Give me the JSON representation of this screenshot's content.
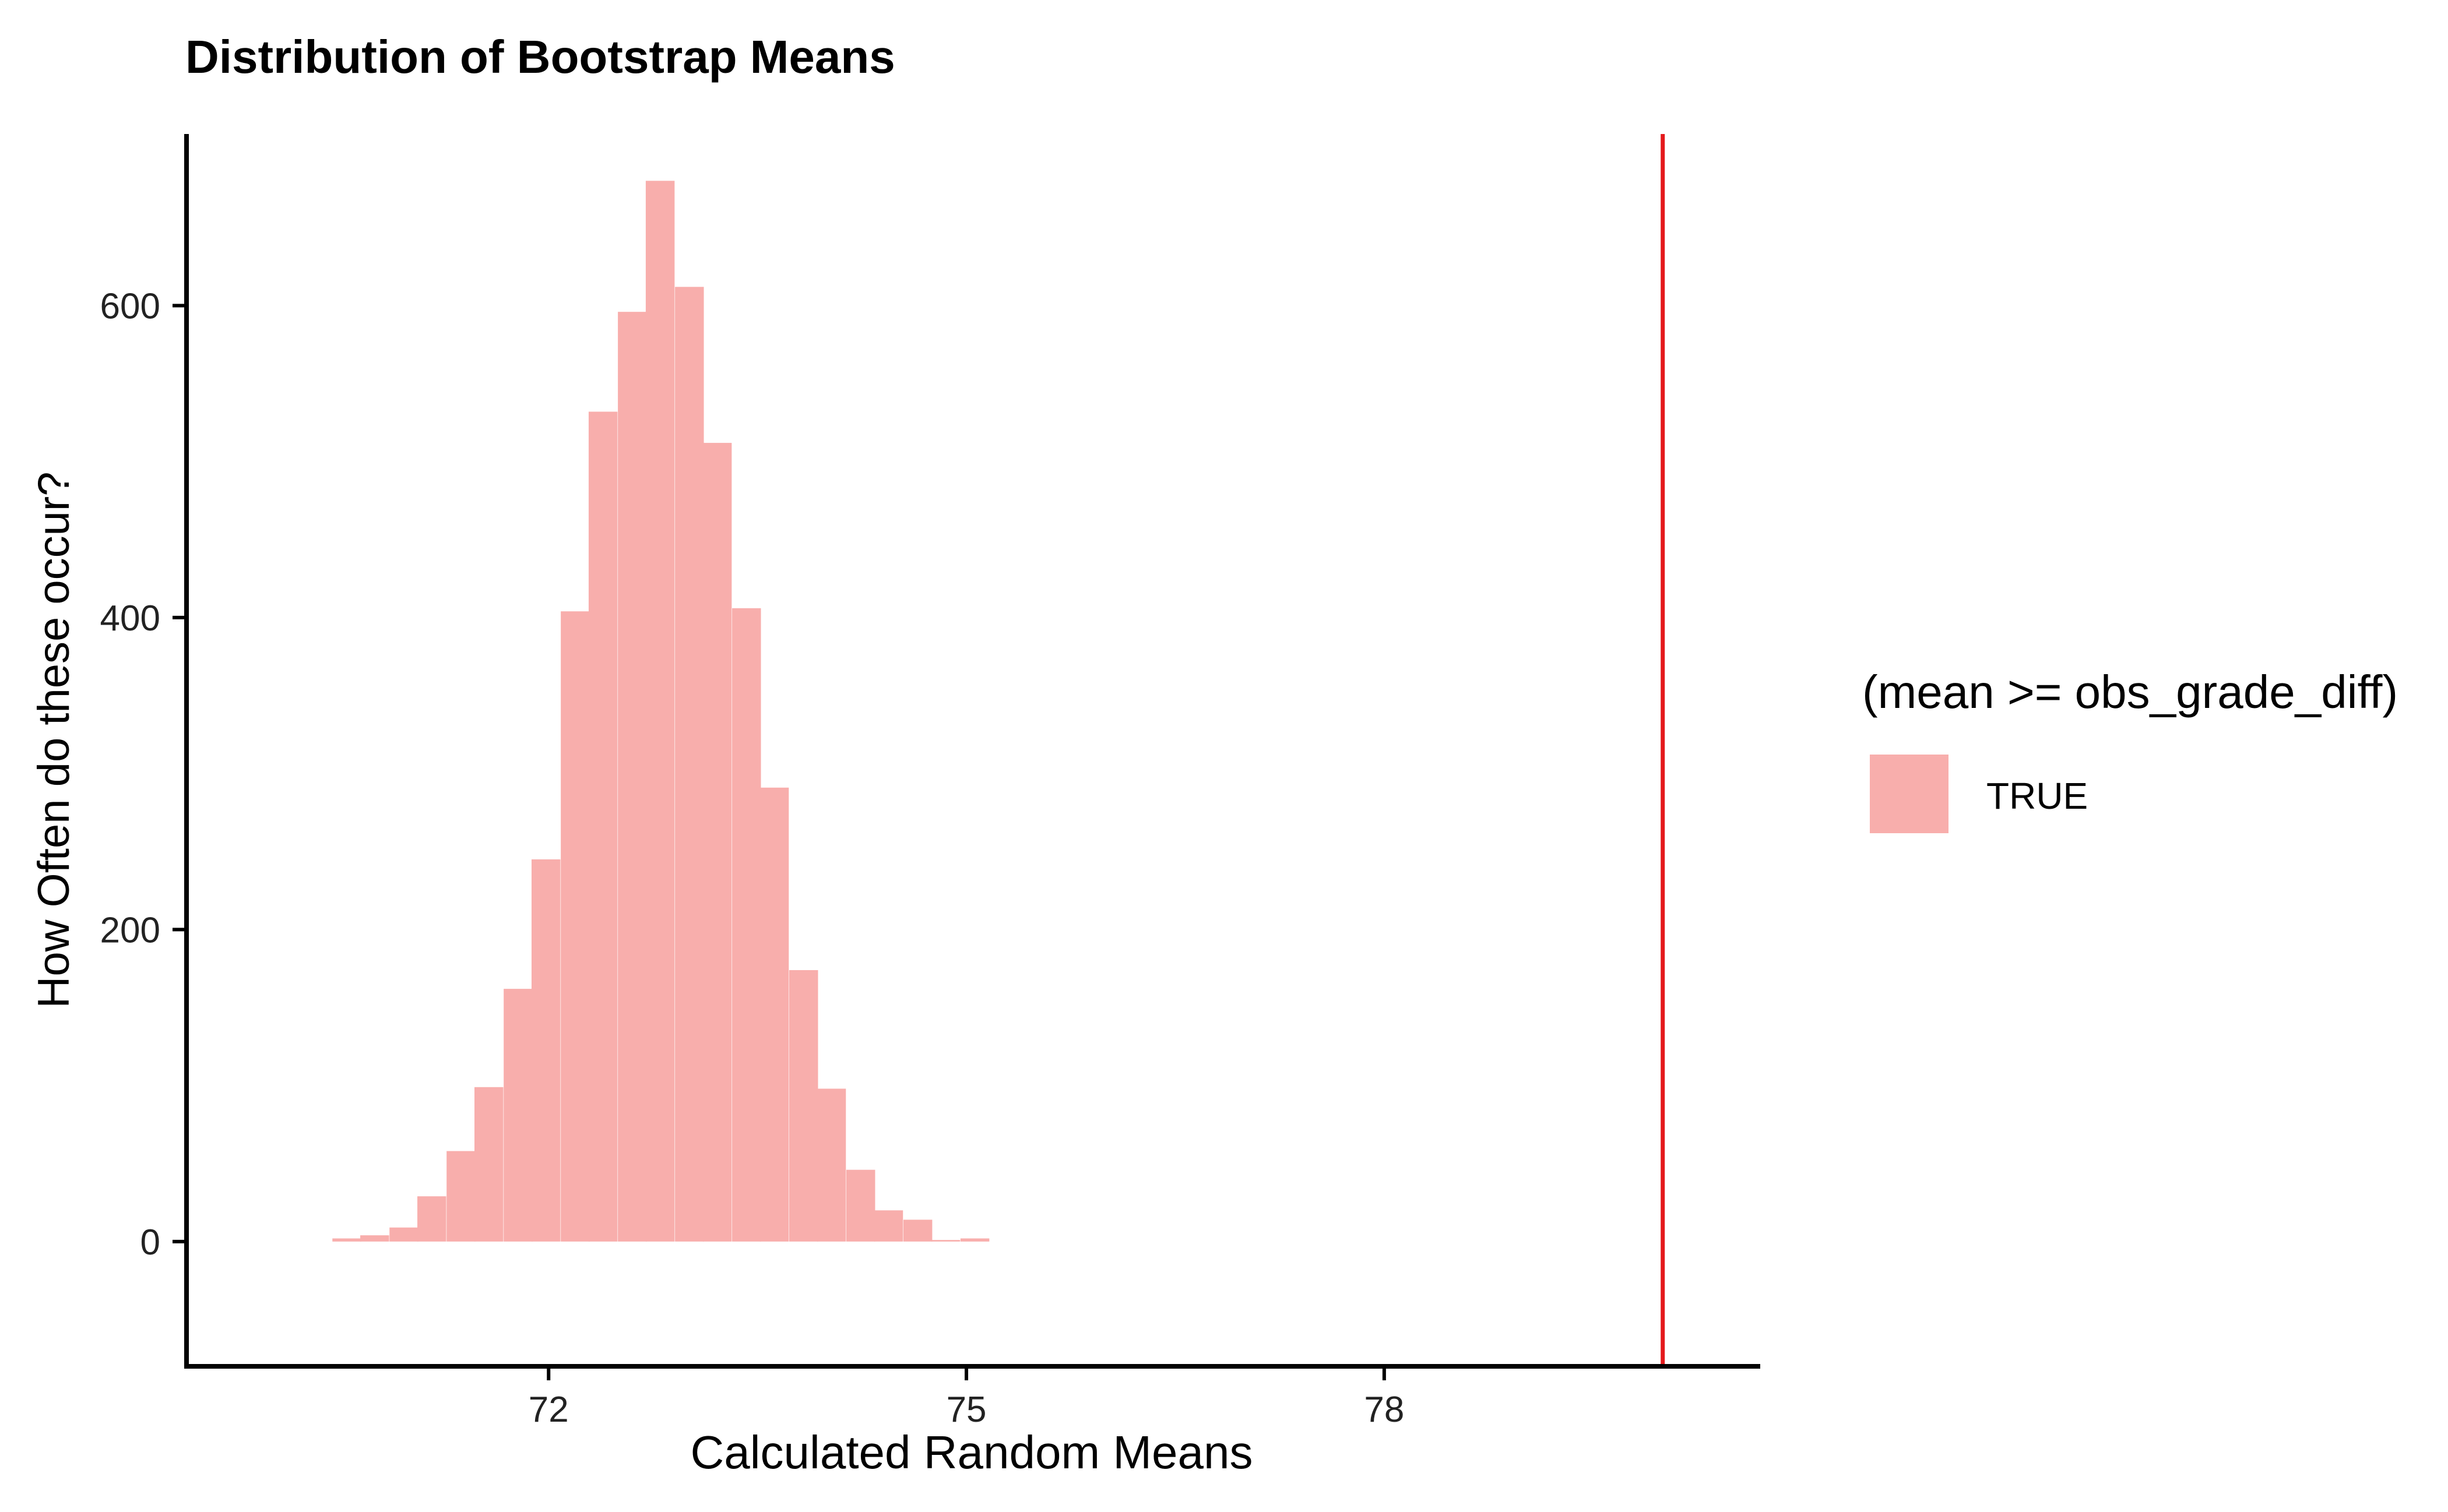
{
  "chart_data": {
    "type": "bar",
    "title": "Distribution of Bootstrap Means",
    "xlabel": "Calculated Random Means",
    "ylabel": "How Often do these occur?",
    "xlim": [
      69.4,
      80.7
    ],
    "ylim": [
      -80,
      710
    ],
    "x_ticks": [
      72,
      75,
      78
    ],
    "y_ticks": [
      0,
      200,
      400,
      600
    ],
    "bin_width": 0.205,
    "bins": [
      {
        "x": 70.55,
        "count": 2
      },
      {
        "x": 70.75,
        "count": 4
      },
      {
        "x": 70.96,
        "count": 9
      },
      {
        "x": 71.16,
        "count": 29
      },
      {
        "x": 71.37,
        "count": 58
      },
      {
        "x": 71.57,
        "count": 99
      },
      {
        "x": 71.78,
        "count": 162
      },
      {
        "x": 71.98,
        "count": 245
      },
      {
        "x": 72.19,
        "count": 404
      },
      {
        "x": 72.39,
        "count": 532
      },
      {
        "x": 72.6,
        "count": 596
      },
      {
        "x": 72.8,
        "count": 680
      },
      {
        "x": 73.01,
        "count": 612
      },
      {
        "x": 73.21,
        "count": 512
      },
      {
        "x": 73.42,
        "count": 406
      },
      {
        "x": 73.62,
        "count": 291
      },
      {
        "x": 73.83,
        "count": 174
      },
      {
        "x": 74.03,
        "count": 98
      },
      {
        "x": 74.24,
        "count": 46
      },
      {
        "x": 74.44,
        "count": 20
      },
      {
        "x": 74.65,
        "count": 14
      },
      {
        "x": 74.85,
        "count": 1
      },
      {
        "x": 75.06,
        "count": 2
      }
    ],
    "reference_line": {
      "x": 80.0,
      "color": "#e41a1c"
    },
    "bar_color": "#f8aeac",
    "grid": false,
    "legend": {
      "title": "(mean >= obs_grade_diff)",
      "position": "right",
      "entries": [
        {
          "label": "TRUE",
          "color": "#f8aeac"
        }
      ]
    }
  }
}
